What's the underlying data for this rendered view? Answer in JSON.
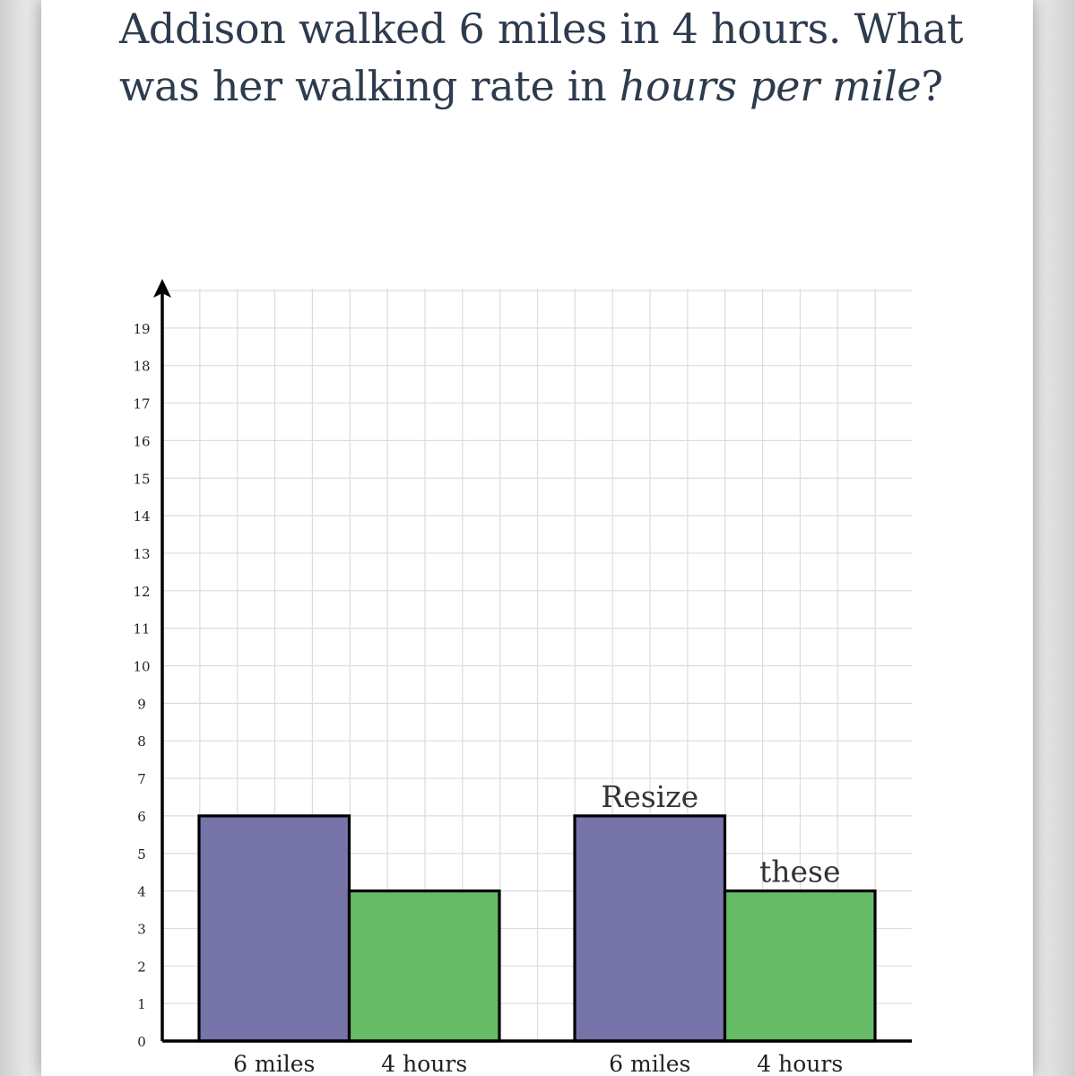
{
  "question": {
    "part1": "Addison walked 6 miles in 4 hours. What was her walking rate in ",
    "emphasis": "hours per mile",
    "part2": "?"
  },
  "chart_data": {
    "type": "bar",
    "ylim": [
      0,
      20
    ],
    "y_ticks": [
      "0",
      "1",
      "2",
      "3",
      "4",
      "5",
      "6",
      "7",
      "8",
      "9",
      "10",
      "11",
      "12",
      "13",
      "14",
      "15",
      "16",
      "17",
      "18",
      "19"
    ],
    "grid": true,
    "groups": [
      {
        "bars": [
          {
            "label": "6 miles",
            "value": 6,
            "color": "#7674a9"
          },
          {
            "label": "4 hours",
            "value": 4,
            "color": "#66bc66"
          }
        ]
      },
      {
        "bars": [
          {
            "label": "6 miles",
            "value": 6,
            "color": "#7674a9",
            "note": "Resize"
          },
          {
            "label": "4 hours",
            "value": 4,
            "color": "#66bc66",
            "note": "these"
          }
        ]
      }
    ]
  }
}
